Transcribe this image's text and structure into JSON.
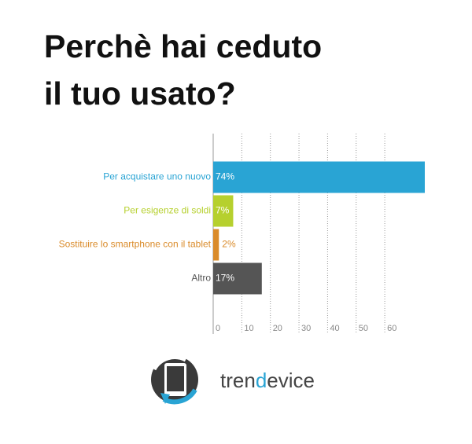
{
  "chart_data": {
    "type": "bar",
    "orientation": "horizontal",
    "title": [
      "Perchè hai ceduto",
      "il tuo usato?"
    ],
    "categories": [
      "Per acquistare uno nuovo",
      "Per esigenze di soldi",
      "Sostituire lo smartphone con il tablet",
      "Altro"
    ],
    "values": [
      74,
      7,
      2,
      17
    ],
    "value_labels": [
      "74%",
      "7%",
      "2%",
      "17%"
    ],
    "colors": [
      "#29a4d4",
      "#b6d02e",
      "#da8b2a",
      "#555555"
    ],
    "xlim": [
      0,
      74
    ],
    "xticks": [
      0,
      10,
      20,
      30,
      40,
      50,
      60
    ],
    "grid": true
  },
  "logo": {
    "text": [
      "tren",
      "d",
      "evice"
    ]
  }
}
